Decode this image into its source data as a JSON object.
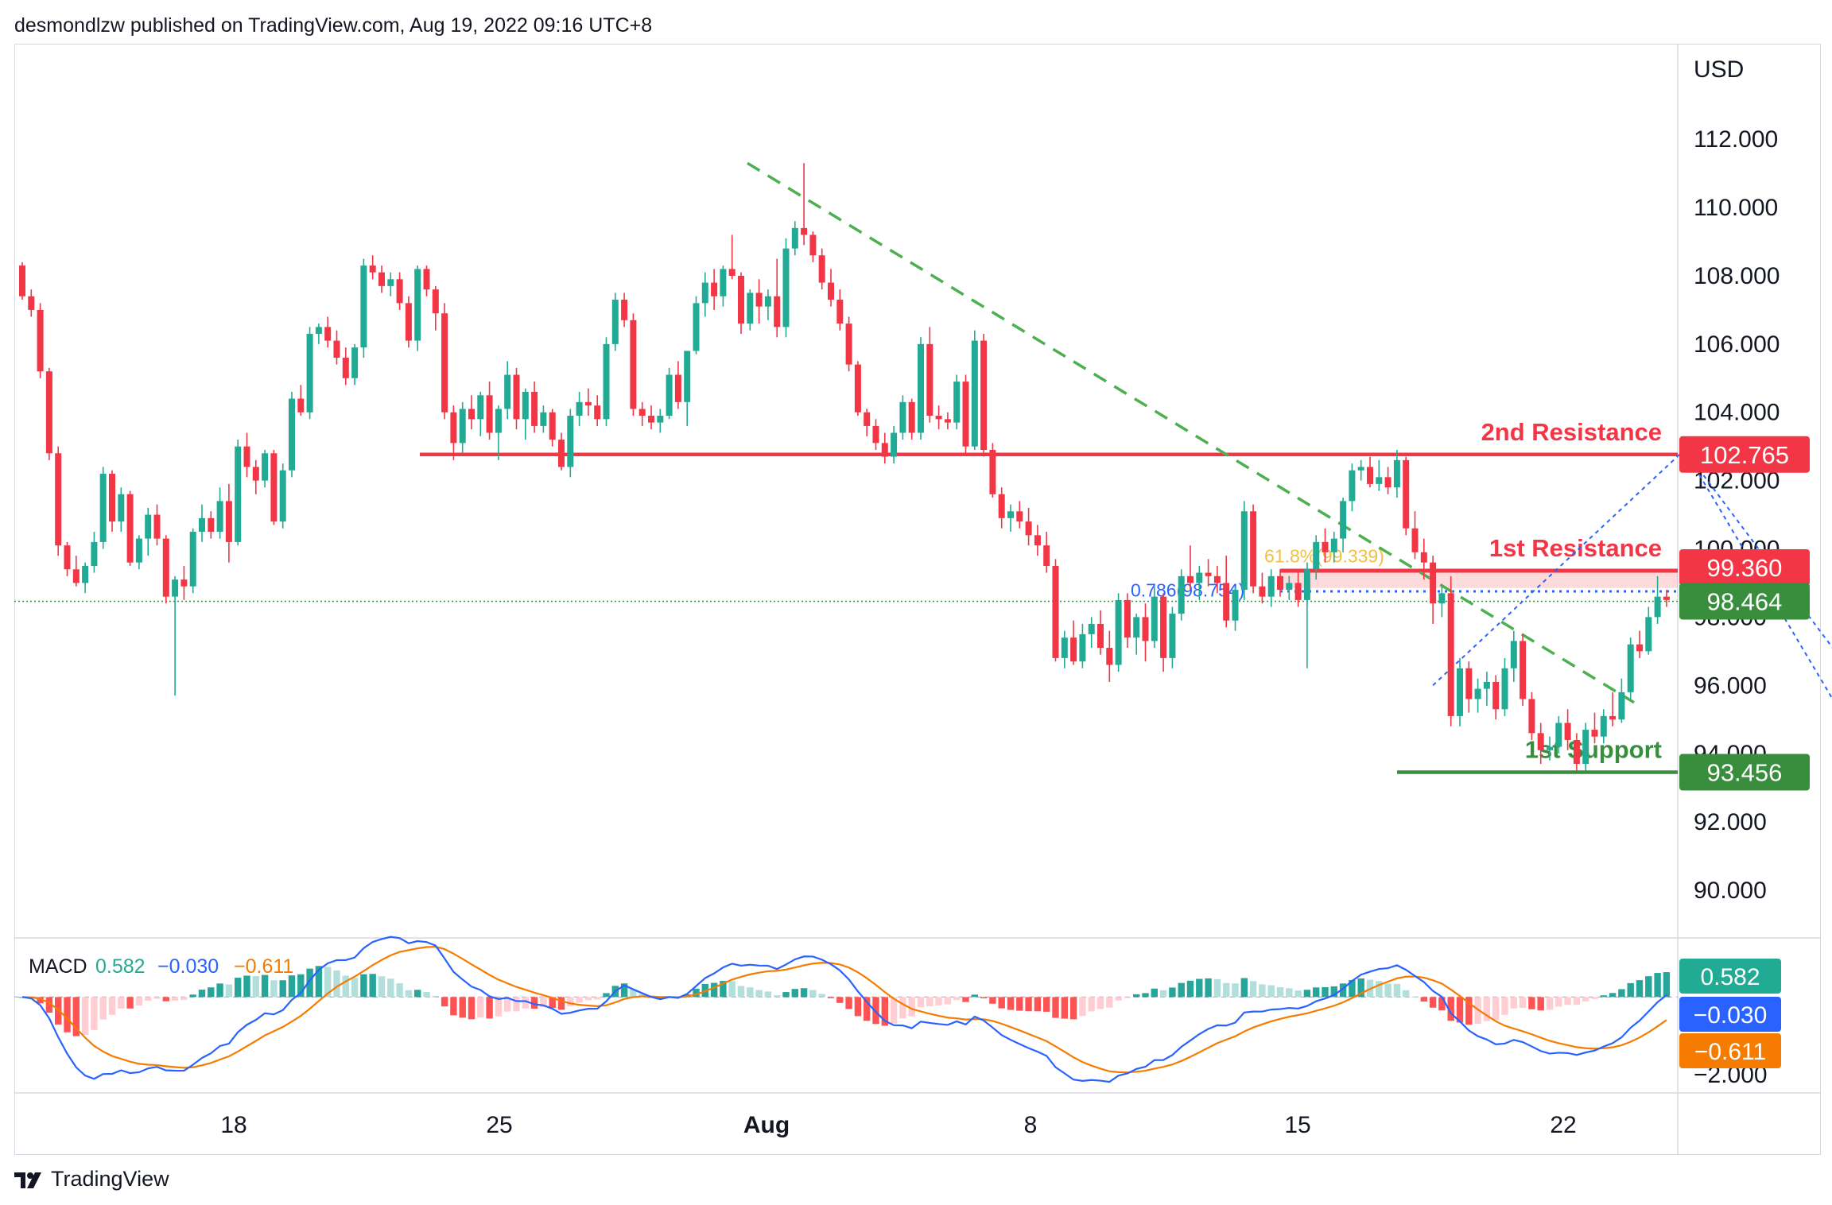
{
  "header": {
    "text": "desmondlzw published on TradingView.com, Aug 19, 2022 09:16 UTC+8"
  },
  "footer": {
    "brand": "TradingView",
    "logo_icon": "tradingview-logo-icon"
  },
  "axis": {
    "currency": "USD"
  },
  "chart_data": {
    "type": "candlestick",
    "title": "",
    "price_axis": {
      "range": [
        88.6,
        114.8
      ],
      "ticks": [
        "112.000",
        "110.000",
        "108.000",
        "106.000",
        "104.000",
        "102.000",
        "100.000",
        "98.000",
        "96.000",
        "94.000",
        "92.000",
        "90.000"
      ],
      "position": "right"
    },
    "time_axis": {
      "ticks": [
        "18",
        "25",
        "Aug",
        "8",
        "15",
        "22"
      ]
    },
    "candles": [
      [
        108.3,
        108.4,
        107.3,
        107.4
      ],
      [
        107.4,
        107.6,
        106.8,
        107.0
      ],
      [
        107.0,
        107.2,
        105.0,
        105.2
      ],
      [
        105.2,
        105.3,
        102.6,
        102.8
      ],
      [
        102.8,
        103.0,
        99.8,
        100.1
      ],
      [
        100.1,
        100.2,
        99.2,
        99.4
      ],
      [
        99.4,
        99.8,
        98.9,
        99.0
      ],
      [
        99.0,
        99.6,
        98.7,
        99.5
      ],
      [
        99.5,
        100.5,
        99.3,
        100.2
      ],
      [
        100.2,
        102.4,
        100.0,
        102.2
      ],
      [
        102.2,
        102.3,
        100.5,
        100.8
      ],
      [
        100.8,
        101.8,
        100.5,
        101.6
      ],
      [
        101.6,
        101.7,
        99.5,
        99.6
      ],
      [
        99.6,
        100.4,
        99.4,
        100.3
      ],
      [
        100.3,
        101.2,
        99.8,
        101.0
      ],
      [
        101.0,
        101.3,
        100.1,
        100.3
      ],
      [
        100.3,
        100.4,
        98.4,
        98.6
      ],
      [
        98.6,
        99.2,
        95.7,
        99.1
      ],
      [
        99.1,
        99.5,
        98.5,
        98.9
      ],
      [
        98.9,
        100.6,
        98.7,
        100.5
      ],
      [
        100.5,
        101.3,
        100.2,
        100.9
      ],
      [
        100.9,
        101.1,
        100.3,
        100.5
      ],
      [
        100.5,
        101.8,
        100.3,
        101.4
      ],
      [
        101.4,
        101.9,
        99.6,
        100.2
      ],
      [
        100.2,
        103.2,
        100.1,
        103.0
      ],
      [
        103.0,
        103.4,
        102.1,
        102.4
      ],
      [
        102.4,
        102.6,
        101.6,
        102.0
      ],
      [
        102.0,
        102.9,
        101.8,
        102.8
      ],
      [
        102.8,
        102.9,
        100.7,
        100.8
      ],
      [
        100.8,
        102.5,
        100.6,
        102.3
      ],
      [
        102.3,
        104.6,
        102.1,
        104.4
      ],
      [
        104.4,
        104.8,
        103.9,
        104.0
      ],
      [
        104.0,
        106.5,
        103.8,
        106.3
      ],
      [
        106.3,
        106.6,
        106.0,
        106.5
      ],
      [
        106.5,
        106.8,
        105.9,
        106.1
      ],
      [
        106.1,
        106.4,
        105.4,
        105.6
      ],
      [
        105.6,
        105.9,
        104.8,
        105.0
      ],
      [
        105.0,
        106.0,
        104.8,
        105.9
      ],
      [
        105.9,
        108.5,
        105.6,
        108.3
      ],
      [
        108.3,
        108.6,
        107.9,
        108.1
      ],
      [
        108.1,
        108.3,
        107.5,
        107.7
      ],
      [
        107.7,
        108.1,
        107.4,
        107.9
      ],
      [
        107.9,
        108.1,
        107.0,
        107.2
      ],
      [
        107.2,
        107.4,
        105.9,
        106.1
      ],
      [
        106.1,
        108.3,
        105.8,
        108.2
      ],
      [
        108.2,
        108.3,
        107.4,
        107.6
      ],
      [
        107.6,
        107.7,
        106.4,
        106.9
      ],
      [
        106.9,
        107.2,
        103.8,
        104.0
      ],
      [
        104.0,
        104.2,
        102.6,
        103.1
      ],
      [
        103.1,
        104.3,
        102.8,
        104.1
      ],
      [
        104.1,
        104.5,
        103.5,
        103.8
      ],
      [
        103.8,
        104.6,
        103.3,
        104.5
      ],
      [
        104.5,
        104.9,
        103.2,
        103.4
      ],
      [
        103.4,
        104.2,
        102.6,
        104.1
      ],
      [
        104.1,
        105.5,
        103.8,
        105.1
      ],
      [
        105.1,
        105.3,
        103.5,
        103.8
      ],
      [
        103.8,
        104.7,
        103.2,
        104.6
      ],
      [
        104.6,
        104.9,
        103.4,
        103.6
      ],
      [
        103.6,
        104.2,
        103.4,
        104.0
      ],
      [
        104.0,
        104.1,
        103.0,
        103.2
      ],
      [
        103.2,
        103.4,
        102.3,
        102.4
      ],
      [
        102.4,
        104.1,
        102.1,
        103.9
      ],
      [
        103.9,
        104.6,
        103.6,
        104.3
      ],
      [
        104.3,
        104.7,
        103.9,
        104.2
      ],
      [
        104.2,
        104.5,
        103.6,
        103.8
      ],
      [
        103.8,
        106.2,
        103.6,
        106.0
      ],
      [
        106.0,
        107.5,
        105.8,
        107.3
      ],
      [
        107.3,
        107.5,
        106.5,
        106.7
      ],
      [
        106.7,
        106.9,
        103.9,
        104.1
      ],
      [
        104.1,
        104.3,
        103.6,
        103.9
      ],
      [
        103.9,
        104.2,
        103.5,
        103.7
      ],
      [
        103.7,
        104.1,
        103.4,
        103.9
      ],
      [
        103.9,
        105.3,
        103.8,
        105.1
      ],
      [
        105.1,
        105.5,
        104.1,
        104.3
      ],
      [
        104.3,
        105.8,
        103.6,
        105.8
      ],
      [
        105.8,
        107.4,
        105.7,
        107.2
      ],
      [
        107.2,
        108.1,
        106.8,
        107.8
      ],
      [
        107.8,
        108.2,
        107.0,
        107.4
      ],
      [
        107.4,
        108.3,
        107.1,
        108.2
      ],
      [
        108.2,
        109.2,
        107.9,
        108.0
      ],
      [
        108.0,
        108.1,
        106.3,
        106.6
      ],
      [
        106.6,
        107.6,
        106.4,
        107.5
      ],
      [
        107.5,
        107.9,
        106.6,
        107.1
      ],
      [
        107.1,
        107.6,
        106.7,
        107.4
      ],
      [
        107.4,
        108.5,
        106.2,
        106.5
      ],
      [
        106.5,
        109.1,
        106.2,
        108.8
      ],
      [
        108.8,
        109.6,
        108.6,
        109.4
      ],
      [
        109.4,
        111.3,
        108.9,
        109.2
      ],
      [
        109.2,
        109.3,
        108.4,
        108.6
      ],
      [
        108.6,
        108.8,
        107.6,
        107.8
      ],
      [
        107.8,
        108.2,
        107.1,
        107.3
      ],
      [
        107.3,
        107.6,
        106.4,
        106.6
      ],
      [
        106.6,
        106.8,
        105.2,
        105.4
      ],
      [
        105.4,
        105.5,
        103.9,
        104.0
      ],
      [
        104.0,
        104.1,
        103.3,
        103.6
      ],
      [
        103.6,
        103.8,
        102.9,
        103.1
      ],
      [
        103.1,
        103.4,
        102.5,
        102.7
      ],
      [
        102.7,
        103.6,
        102.5,
        103.4
      ],
      [
        103.4,
        104.5,
        103.2,
        104.3
      ],
      [
        104.3,
        104.4,
        103.2,
        103.4
      ],
      [
        103.4,
        106.2,
        103.2,
        106.0
      ],
      [
        106.0,
        106.5,
        103.7,
        103.9
      ],
      [
        103.9,
        104.2,
        103.5,
        103.8
      ],
      [
        103.8,
        104.0,
        103.5,
        103.7
      ],
      [
        103.7,
        105.1,
        103.5,
        104.9
      ],
      [
        104.9,
        105.1,
        102.8,
        103.0
      ],
      [
        103.0,
        106.4,
        102.9,
        106.1
      ],
      [
        106.1,
        106.3,
        102.7,
        102.9
      ],
      [
        102.9,
        103.1,
        101.5,
        101.6
      ],
      [
        101.6,
        101.8,
        100.6,
        100.9
      ],
      [
        100.9,
        101.3,
        100.5,
        101.1
      ],
      [
        101.1,
        101.4,
        100.6,
        100.8
      ],
      [
        100.8,
        101.2,
        100.1,
        100.4
      ],
      [
        100.4,
        100.7,
        99.8,
        100.1
      ],
      [
        100.1,
        100.5,
        99.3,
        99.5
      ],
      [
        99.5,
        99.7,
        96.7,
        96.8
      ],
      [
        96.8,
        97.6,
        96.5,
        97.4
      ],
      [
        97.4,
        97.9,
        96.6,
        96.7
      ],
      [
        96.7,
        97.8,
        96.5,
        97.5
      ],
      [
        97.5,
        98.0,
        97.1,
        97.8
      ],
      [
        97.8,
        98.2,
        96.9,
        97.1
      ],
      [
        97.1,
        97.6,
        96.1,
        96.6
      ],
      [
        96.6,
        98.7,
        96.4,
        98.5
      ],
      [
        98.5,
        98.7,
        97.1,
        97.4
      ],
      [
        97.4,
        98.1,
        96.9,
        98.0
      ],
      [
        98.0,
        98.4,
        96.7,
        97.3
      ],
      [
        97.3,
        98.9,
        97.1,
        98.6
      ],
      [
        98.6,
        98.7,
        96.4,
        96.8
      ],
      [
        96.8,
        98.3,
        96.5,
        98.1
      ],
      [
        98.1,
        99.4,
        97.9,
        99.2
      ],
      [
        99.2,
        100.1,
        98.8,
        99.0
      ],
      [
        99.0,
        99.5,
        98.5,
        99.3
      ],
      [
        99.3,
        99.7,
        98.9,
        99.2
      ],
      [
        99.2,
        99.5,
        98.7,
        99.0
      ],
      [
        99.0,
        99.8,
        97.7,
        97.9
      ],
      [
        97.9,
        98.9,
        97.6,
        98.8
      ],
      [
        98.8,
        101.4,
        98.5,
        101.1
      ],
      [
        101.1,
        101.3,
        98.7,
        98.9
      ],
      [
        98.9,
        99.3,
        98.4,
        98.6
      ],
      [
        98.6,
        99.4,
        98.3,
        99.2
      ],
      [
        99.2,
        99.4,
        98.6,
        98.8
      ],
      [
        98.8,
        99.2,
        98.5,
        99.0
      ],
      [
        99.0,
        99.3,
        98.3,
        98.5
      ],
      [
        98.5,
        99.6,
        96.5,
        99.4
      ],
      [
        99.4,
        100.4,
        99.1,
        100.2
      ],
      [
        100.2,
        100.6,
        99.6,
        99.9
      ],
      [
        99.9,
        100.5,
        99.6,
        100.3
      ],
      [
        100.3,
        101.5,
        99.9,
        101.4
      ],
      [
        101.4,
        102.5,
        101.1,
        102.3
      ],
      [
        102.3,
        102.6,
        102.0,
        102.4
      ],
      [
        102.4,
        102.7,
        101.8,
        101.9
      ],
      [
        101.9,
        102.6,
        101.7,
        102.1
      ],
      [
        102.1,
        102.4,
        101.6,
        101.8
      ],
      [
        101.8,
        102.9,
        101.5,
        102.6
      ],
      [
        102.6,
        102.7,
        100.4,
        100.6
      ],
      [
        100.6,
        101.1,
        99.7,
        99.9
      ],
      [
        99.9,
        100.3,
        99.1,
        99.6
      ],
      [
        99.6,
        99.8,
        97.8,
        98.4
      ],
      [
        98.4,
        98.9,
        98.0,
        98.7
      ],
      [
        98.7,
        99.2,
        94.8,
        95.1
      ],
      [
        95.1,
        96.8,
        94.8,
        96.5
      ],
      [
        96.5,
        96.7,
        95.2,
        95.6
      ],
      [
        95.6,
        96.2,
        95.2,
        95.9
      ],
      [
        95.9,
        96.4,
        95.4,
        96.1
      ],
      [
        96.1,
        96.3,
        95.0,
        95.3
      ],
      [
        95.3,
        96.8,
        95.1,
        96.5
      ],
      [
        96.5,
        97.6,
        96.1,
        97.3
      ],
      [
        97.3,
        97.5,
        95.4,
        95.6
      ],
      [
        95.6,
        95.8,
        94.4,
        94.6
      ],
      [
        94.6,
        94.9,
        93.7,
        94.1
      ],
      [
        94.1,
        94.5,
        93.8,
        94.2
      ],
      [
        94.2,
        95.1,
        94.0,
        94.9
      ],
      [
        94.9,
        95.3,
        94.1,
        94.4
      ],
      [
        94.4,
        94.6,
        93.5,
        93.7
      ],
      [
        93.7,
        94.9,
        93.5,
        94.7
      ],
      [
        94.7,
        95.2,
        94.3,
        94.5
      ],
      [
        94.5,
        95.3,
        94.3,
        95.1
      ],
      [
        95.1,
        95.8,
        94.8,
        95.0
      ],
      [
        95.0,
        96.2,
        94.9,
        95.8
      ],
      [
        95.8,
        97.4,
        95.6,
        97.2
      ],
      [
        97.2,
        97.6,
        96.8,
        97.0
      ],
      [
        97.0,
        98.3,
        96.9,
        98.0
      ],
      [
        98.0,
        99.2,
        97.8,
        98.6
      ],
      [
        98.6,
        98.8,
        98.3,
        98.5
      ]
    ],
    "last_price": "98.464",
    "horizontal_levels": [
      {
        "label": "2nd Resistance",
        "value": "102.765",
        "color": "#f23645"
      },
      {
        "label": "1st Resistance",
        "value": "99.360",
        "color": "#f23645"
      },
      {
        "label": "1st Support",
        "value": "93.456",
        "color": "#388e3c"
      }
    ],
    "fibonacci": [
      {
        "label": "61.8%(99.339)",
        "color": "#f0c040"
      },
      {
        "label": "0.786(98.754)",
        "color": "#2962ff"
      }
    ],
    "macd": {
      "label": "MACD",
      "values": [
        "0.582",
        "−0.030",
        "−0.611"
      ],
      "value_colors": [
        "#22ab94",
        "#2962ff",
        "#f57c00"
      ],
      "axis_tick": "−2.000",
      "axis_badges": [
        "0.582",
        "−0.030",
        "−0.611"
      ],
      "range": [
        -2.35,
        1.45
      ]
    },
    "colors": {
      "up": "#22ab94",
      "down": "#f23645",
      "macd_line": "#2962ff",
      "signal_line": "#f57c00"
    },
    "trendline": "dashed green downward"
  }
}
